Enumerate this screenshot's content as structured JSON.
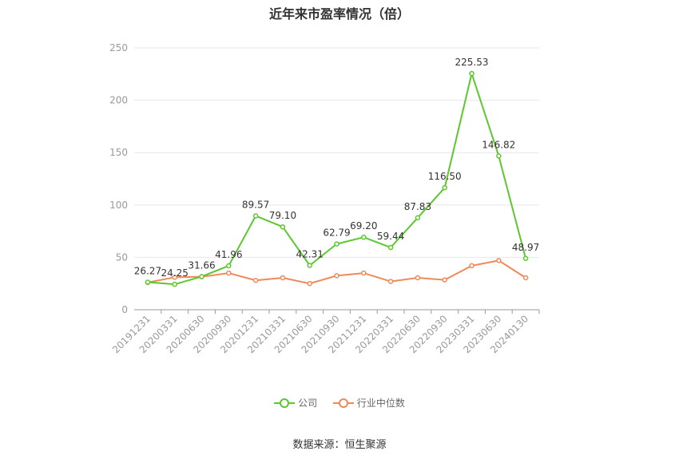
{
  "title": "近年来市盈率情况（倍）",
  "source": "数据来源：恒生聚源",
  "chart_data": {
    "type": "line",
    "categories": [
      "20191231",
      "20200331",
      "20200630",
      "20200930",
      "20201231",
      "20210331",
      "20210630",
      "20210930",
      "20211231",
      "20220331",
      "20220630",
      "20220930",
      "20230331",
      "20230630",
      "20240130"
    ],
    "ylim": [
      0,
      250
    ],
    "yticks": [
      0,
      50,
      100,
      150,
      200,
      250
    ],
    "grid": true,
    "legend_position": "bottom",
    "series": [
      {
        "name": "公司",
        "color": "#5cc72e",
        "values": [
          26.27,
          24.25,
          31.66,
          41.96,
          89.57,
          79.1,
          42.31,
          62.79,
          69.2,
          59.44,
          87.83,
          116.5,
          225.53,
          146.82,
          48.97
        ],
        "labels": [
          "26.27",
          "24.25",
          "31.66",
          "41.96",
          "89.57",
          "79.10",
          "42.31",
          "62.79",
          "69.20",
          "59.44",
          "87.83",
          "116.50",
          "225.53",
          "146.82",
          "48.97"
        ]
      },
      {
        "name": "行业中位数",
        "color": "#f0895a",
        "values": [
          26.0,
          31.0,
          31.5,
          35.0,
          28.0,
          30.5,
          25.0,
          32.5,
          35.0,
          27.0,
          30.5,
          28.5,
          42.0,
          47.0,
          30.5
        ]
      }
    ]
  }
}
